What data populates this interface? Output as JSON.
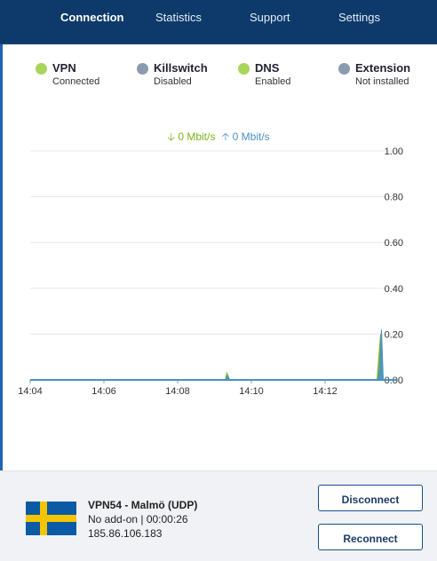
{
  "tabs": [
    {
      "label": "Connection",
      "active": true
    },
    {
      "label": "Statistics",
      "active": false
    },
    {
      "label": "Support",
      "active": false
    },
    {
      "label": "Settings",
      "active": false
    }
  ],
  "status": [
    {
      "name": "VPN",
      "value": "Connected",
      "color": "#a8d65a"
    },
    {
      "name": "Killswitch",
      "value": "Disabled",
      "color": "#8a9bb0"
    },
    {
      "name": "DNS",
      "value": "Enabled",
      "color": "#a8d65a"
    },
    {
      "name": "Extension",
      "value": "Not installed",
      "color": "#8a9bb0"
    }
  ],
  "speed": {
    "download_icon": "arrow-down-icon",
    "download": "0 Mbit/s",
    "upload_icon": "arrow-up-icon",
    "upload": "0 Mbit/s"
  },
  "chart_data": {
    "type": "area",
    "ylim": [
      0,
      1
    ],
    "y_ticks": [
      "1.00",
      "0.80",
      "0.60",
      "0.40",
      "0.20",
      "0.00"
    ],
    "x_ticks": [
      "14:04",
      "14:06",
      "14:08",
      "14:10",
      "14:12"
    ],
    "grid": true,
    "series": [
      {
        "color": "#7ab317",
        "x": [
          "14:04",
          "14:09",
          "14:09",
          "14:09",
          "14:13",
          "14:13",
          "14:13",
          "14:13"
        ],
        "values": [
          0,
          0,
          0.03,
          0,
          0,
          0.1,
          0.2,
          0
        ]
      },
      {
        "color": "#4a90c8",
        "x": [
          "14:04",
          "14:09",
          "14:09",
          "14:09",
          "14:13",
          "14:13",
          "14:13",
          "14:13"
        ],
        "values": [
          0,
          0,
          0.02,
          0,
          0,
          0.06,
          0.22,
          0
        ]
      }
    ]
  },
  "server": {
    "flag": "sweden-flag",
    "name": "VPN54 - Malmö (UDP)",
    "addon": "No add-on | 00:00:26",
    "ip": "185.86.106.183"
  },
  "buttons": {
    "disconnect": "Disconnect",
    "reconnect": "Reconnect"
  }
}
